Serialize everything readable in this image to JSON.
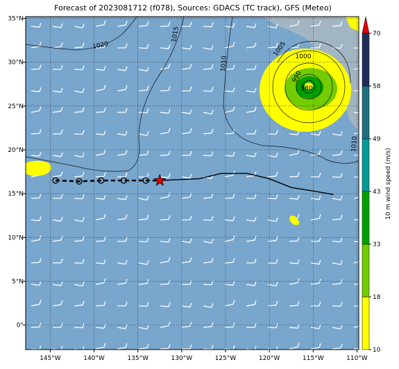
{
  "title": "Forecast of 2023081712 (f078), Sources: GDACS (TC track), GFS (Meteo)",
  "map": {
    "xlim": [
      -147.8,
      -109.8
    ],
    "ylim": [
      -2.8,
      35.2
    ],
    "xticks": [
      {
        "value": -145,
        "label": "145°W"
      },
      {
        "value": -140,
        "label": "140°W"
      },
      {
        "value": -135,
        "label": "135°W"
      },
      {
        "value": -130,
        "label": "130°W"
      },
      {
        "value": -125,
        "label": "125°W"
      },
      {
        "value": -120,
        "label": "120°W"
      },
      {
        "value": -115,
        "label": "115°W"
      },
      {
        "value": -110,
        "label": "110°W"
      }
    ],
    "yticks": [
      {
        "value": 35,
        "label": "35°N"
      },
      {
        "value": 30,
        "label": "30°N"
      },
      {
        "value": 25,
        "label": "25°N"
      },
      {
        "value": 20,
        "label": "20°N"
      },
      {
        "value": 15,
        "label": "15°N"
      },
      {
        "value": 10,
        "label": "10°N"
      },
      {
        "value": 5,
        "label": "5°N"
      },
      {
        "value": 0,
        "label": "0°"
      }
    ]
  },
  "track": {
    "past": {
      "lon": [
        -132.5,
        -128,
        -125.5,
        -122.5,
        -120,
        -117.5,
        -115,
        -112.7
      ],
      "lat": [
        16.5,
        16.7,
        17.3,
        17.3,
        16.7,
        15.7,
        15.3,
        14.9
      ]
    },
    "forecast": {
      "lon": [
        -144.4,
        -141.7,
        -139.2,
        -136.6,
        -134.1
      ],
      "lat": [
        16.5,
        16.4,
        16.5,
        16.5,
        16.5
      ]
    },
    "current": {
      "lon": -132.5,
      "lat": 16.5
    }
  },
  "isobar_labels": [
    "1020",
    "1015",
    "1010",
    "1005",
    "1000",
    "990",
    "980",
    "1010"
  ],
  "colorbar": {
    "label": "10 m wind speed (m/s)",
    "ticks": [
      10,
      18,
      33,
      43,
      49,
      58,
      70
    ],
    "colors": [
      "#ffff00",
      "#72cc00",
      "#00a000",
      "#009b96",
      "#1f6f82",
      "#1f2d5c"
    ],
    "extend_color": "#e00000"
  }
}
